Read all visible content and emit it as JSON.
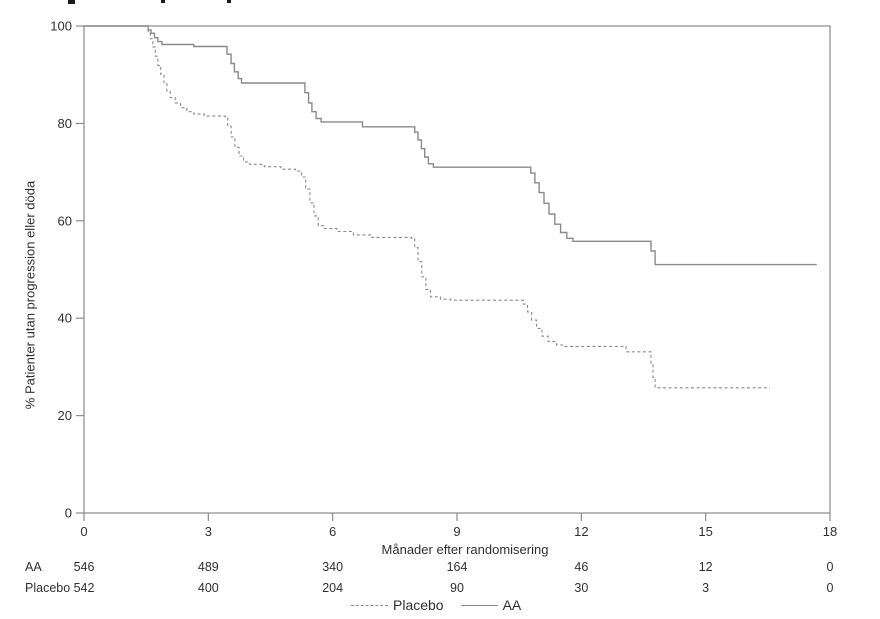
{
  "colors": {
    "line": "#8a8a8a",
    "text": "#303030",
    "background": "#ffffff"
  },
  "axes": {
    "x_tick_labels": [
      "0",
      "3",
      "6",
      "9",
      "12",
      "15",
      "18"
    ],
    "y_tick_labels": [
      "0",
      "20",
      "40",
      "60",
      "80",
      "100"
    ],
    "x_title": "Månader efter randomisering",
    "y_title": "% Patienter utan progression eller döda"
  },
  "at_risk": {
    "rows": [
      {
        "label": "AA",
        "counts": [
          "546",
          "489",
          "340",
          "164",
          "46",
          "12",
          "0"
        ]
      },
      {
        "label": "Placebo",
        "counts": [
          "542",
          "400",
          "204",
          "90",
          "30",
          "3",
          "0"
        ]
      }
    ],
    "timepoints": [
      0,
      3,
      6,
      9,
      12,
      15,
      18
    ]
  },
  "legend": {
    "items": [
      {
        "label": "Placebo",
        "line": "dashed"
      },
      {
        "label": "AA",
        "line": "solid"
      }
    ]
  },
  "chart_data": {
    "type": "line",
    "subtype": "kaplan-meier-step",
    "title": "",
    "xlabel": "Månader efter randomisering",
    "ylabel": "% Patienter utan progression eller döda",
    "xlim": [
      0,
      18
    ],
    "ylim": [
      0,
      100
    ],
    "x_ticks": [
      0,
      3,
      6,
      9,
      12,
      15,
      18
    ],
    "y_ticks": [
      0,
      20,
      40,
      60,
      80,
      100
    ],
    "grid": false,
    "legend_position": "bottom-center",
    "series": [
      {
        "name": "AA",
        "style": "solid",
        "color": "#8a8a8a",
        "points": [
          [
            0,
            100
          ],
          [
            1.5,
            100
          ],
          [
            1.55,
            99.2
          ],
          [
            1.62,
            98.5
          ],
          [
            1.7,
            97.6
          ],
          [
            1.78,
            96.8
          ],
          [
            1.88,
            96.2
          ],
          [
            2.55,
            96.2
          ],
          [
            2.65,
            95.8
          ],
          [
            3.37,
            95.8
          ],
          [
            3.45,
            94.2
          ],
          [
            3.55,
            92.3
          ],
          [
            3.63,
            90.6
          ],
          [
            3.72,
            89.2
          ],
          [
            3.8,
            88.3
          ],
          [
            5.23,
            88.3
          ],
          [
            5.33,
            86.3
          ],
          [
            5.42,
            84.2
          ],
          [
            5.5,
            82.4
          ],
          [
            5.6,
            81.0
          ],
          [
            5.72,
            80.3
          ],
          [
            6.62,
            80.3
          ],
          [
            6.72,
            79.3
          ],
          [
            7.9,
            79.3
          ],
          [
            7.98,
            78.2
          ],
          [
            8.06,
            76.6
          ],
          [
            8.14,
            74.8
          ],
          [
            8.22,
            73.1
          ],
          [
            8.31,
            71.7
          ],
          [
            8.43,
            71.0
          ],
          [
            10.7,
            71.0
          ],
          [
            10.78,
            69.8
          ],
          [
            10.88,
            67.8
          ],
          [
            10.98,
            65.8
          ],
          [
            11.1,
            63.6
          ],
          [
            11.22,
            61.4
          ],
          [
            11.36,
            59.3
          ],
          [
            11.5,
            57.6
          ],
          [
            11.65,
            56.4
          ],
          [
            11.8,
            55.8
          ],
          [
            13.6,
            55.8
          ],
          [
            13.68,
            53.8
          ],
          [
            13.78,
            51.0
          ],
          [
            17.68,
            51.0
          ]
        ]
      },
      {
        "name": "Placebo",
        "style": "dashed",
        "color": "#8a8a8a",
        "points": [
          [
            0,
            100
          ],
          [
            1.5,
            100
          ],
          [
            1.55,
            98.9
          ],
          [
            1.6,
            97.4
          ],
          [
            1.66,
            95.7
          ],
          [
            1.72,
            93.8
          ],
          [
            1.78,
            91.9
          ],
          [
            1.85,
            90.1
          ],
          [
            1.93,
            88.2
          ],
          [
            2.0,
            86.5
          ],
          [
            2.08,
            85.3
          ],
          [
            2.2,
            84.2
          ],
          [
            2.33,
            83.2
          ],
          [
            2.48,
            82.4
          ],
          [
            2.65,
            81.9
          ],
          [
            2.9,
            81.5
          ],
          [
            3.4,
            81.4
          ],
          [
            3.47,
            79.4
          ],
          [
            3.55,
            77.2
          ],
          [
            3.64,
            75.1
          ],
          [
            3.74,
            73.3
          ],
          [
            3.85,
            72.1
          ],
          [
            4.0,
            71.6
          ],
          [
            4.35,
            71.1
          ],
          [
            4.75,
            70.6
          ],
          [
            5.1,
            70.2
          ],
          [
            5.25,
            69.0
          ],
          [
            5.35,
            66.5
          ],
          [
            5.45,
            63.7
          ],
          [
            5.55,
            61.0
          ],
          [
            5.65,
            59.0
          ],
          [
            5.8,
            58.4
          ],
          [
            6.1,
            57.8
          ],
          [
            6.5,
            57.1
          ],
          [
            6.95,
            56.6
          ],
          [
            7.9,
            56.4
          ],
          [
            7.98,
            54.5
          ],
          [
            8.06,
            51.6
          ],
          [
            8.15,
            48.5
          ],
          [
            8.25,
            45.9
          ],
          [
            8.36,
            44.4
          ],
          [
            8.6,
            43.9
          ],
          [
            8.85,
            43.7
          ],
          [
            10.5,
            43.7
          ],
          [
            10.6,
            42.9
          ],
          [
            10.7,
            41.3
          ],
          [
            10.8,
            39.6
          ],
          [
            10.92,
            37.9
          ],
          [
            11.05,
            36.3
          ],
          [
            11.2,
            35.2
          ],
          [
            11.4,
            34.5
          ],
          [
            11.6,
            34.2
          ],
          [
            13.0,
            34.2
          ],
          [
            13.08,
            33.1
          ],
          [
            13.6,
            33.1
          ],
          [
            13.68,
            30.5
          ],
          [
            13.73,
            27.8
          ],
          [
            13.78,
            25.7
          ],
          [
            16.55,
            25.7
          ]
        ]
      }
    ],
    "at_risk_counts": {
      "AA": [
        546,
        489,
        340,
        164,
        46,
        12,
        0
      ],
      "Placebo": [
        542,
        400,
        204,
        90,
        30,
        3,
        0
      ]
    }
  }
}
